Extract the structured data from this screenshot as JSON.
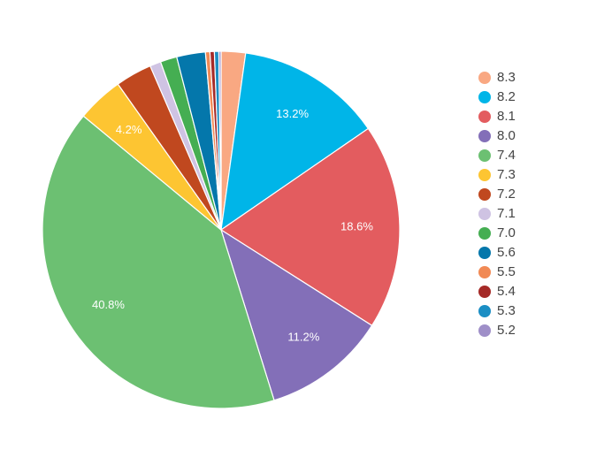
{
  "chart_data": {
    "type": "pie",
    "title": "",
    "legend_position": "right",
    "categories": [
      "8.3",
      "8.2",
      "8.1",
      "8.0",
      "7.4",
      "7.3",
      "7.2",
      "7.1",
      "7.0",
      "5.6",
      "5.5",
      "5.4",
      "5.3",
      "5.2"
    ],
    "values": [
      2.2,
      13.2,
      18.6,
      11.2,
      40.8,
      4.2,
      3.3,
      1.0,
      1.5,
      2.6,
      0.4,
      0.4,
      0.4,
      0.2
    ],
    "labels": [
      "",
      "13.2%",
      "18.6%",
      "11.2%",
      "40.8%",
      "4.2%",
      "",
      "",
      "",
      "",
      "",
      "",
      "",
      ""
    ],
    "colors": [
      "#f9a882",
      "#00b5e8",
      "#e35c5f",
      "#836fb8",
      "#6cc072",
      "#fdc532",
      "#c0481f",
      "#cfc3e3",
      "#45ae52",
      "#0477ab",
      "#f18a55",
      "#a52a27",
      "#1b8ec4",
      "#9f8fc8"
    ]
  }
}
